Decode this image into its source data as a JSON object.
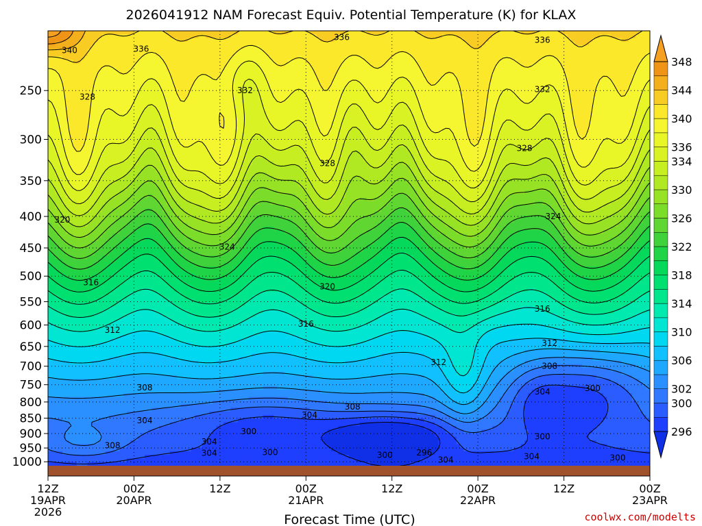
{
  "chart_data": {
    "type": "heatmap",
    "title": "2026041912 NAM Forecast Equiv. Potential Temperature (K) for KLAX",
    "xlabel": "Forecast Time (UTC)",
    "ylabel": "",
    "credit": "coolwx.com/modelts",
    "x_tick_labels": [
      {
        "hours": 0,
        "line1": "12Z",
        "line2": "19APR",
        "line3": "2026"
      },
      {
        "hours": 12,
        "line1": "00Z",
        "line2": "20APR",
        "line3": ""
      },
      {
        "hours": 24,
        "line1": "12Z",
        "line2": "",
        "line3": ""
      },
      {
        "hours": 36,
        "line1": "00Z",
        "line2": "21APR",
        "line3": ""
      },
      {
        "hours": 48,
        "line1": "12Z",
        "line2": "",
        "line3": ""
      },
      {
        "hours": 60,
        "line1": "00Z",
        "line2": "22APR",
        "line3": ""
      },
      {
        "hours": 72,
        "line1": "12Z",
        "line2": "",
        "line3": ""
      },
      {
        "hours": 84,
        "line1": "00Z",
        "line2": "23APR",
        "line3": ""
      }
    ],
    "xlim": [
      0,
      84
    ],
    "y_axis": {
      "type": "log-pressure",
      "units": "hPa",
      "ylim": [
        1015,
        200
      ]
    },
    "y_tick_labels": [
      "250",
      "300",
      "350",
      "400",
      "450",
      "500",
      "550",
      "600",
      "650",
      "700",
      "750",
      "800",
      "850",
      "900",
      "950",
      "1000"
    ],
    "y_tick_values": [
      250,
      300,
      350,
      400,
      450,
      500,
      550,
      600,
      650,
      700,
      750,
      800,
      850,
      900,
      950,
      1000
    ],
    "colorbar": {
      "levels": [
        296,
        298,
        300,
        302,
        304,
        306,
        308,
        310,
        312,
        314,
        316,
        318,
        320,
        322,
        324,
        326,
        328,
        330,
        332,
        334,
        336,
        338,
        340,
        342,
        344,
        346,
        348
      ],
      "tick_labels": [
        "296",
        "300",
        "302",
        "306",
        "310",
        "314",
        "318",
        "322",
        "326",
        "330",
        "334",
        "336",
        "340",
        "344",
        "348"
      ],
      "tick_values": [
        296,
        300,
        302,
        306,
        310,
        314,
        318,
        322,
        326,
        330,
        334,
        336,
        340,
        344,
        348
      ],
      "colors": [
        "#1f3fff",
        "#2a5cff",
        "#2f78ff",
        "#2a90ff",
        "#1fa8ff",
        "#10c0ff",
        "#00d8f2",
        "#00e6d2",
        "#00eab0",
        "#00e68c",
        "#00e070",
        "#05d85a",
        "#1fd446",
        "#40d23a",
        "#5fd632",
        "#7cdc2a",
        "#98e226",
        "#b0e822",
        "#c6ee20",
        "#d8f224",
        "#e8f628",
        "#f5f530",
        "#fbe82a",
        "#f8cc22",
        "#f4b01c",
        "#f09418"
      ],
      "under_color": "#1030e8",
      "over_color": "#f5a020"
    },
    "contour_labels": [
      {
        "text": "340",
        "hours": 3,
        "hpa": 215
      },
      {
        "text": "336",
        "hours": 13,
        "hpa": 214
      },
      {
        "text": "336",
        "hours": 41,
        "hpa": 205
      },
      {
        "text": "336",
        "hours": 69,
        "hpa": 207
      },
      {
        "text": "328",
        "hours": 5.5,
        "hpa": 256
      },
      {
        "text": "332",
        "hours": 27.5,
        "hpa": 250
      },
      {
        "text": "332",
        "hours": 69,
        "hpa": 249
      },
      {
        "text": "328",
        "hours": 66.5,
        "hpa": 310
      },
      {
        "text": "328",
        "hours": 39,
        "hpa": 328
      },
      {
        "text": "320",
        "hours": 2,
        "hpa": 405
      },
      {
        "text": "324",
        "hours": 25,
        "hpa": 448
      },
      {
        "text": "324",
        "hours": 70.5,
        "hpa": 400
      },
      {
        "text": "316",
        "hours": 6,
        "hpa": 512
      },
      {
        "text": "320",
        "hours": 39,
        "hpa": 520
      },
      {
        "text": "316",
        "hours": 69,
        "hpa": 565
      },
      {
        "text": "312",
        "hours": 9,
        "hpa": 612
      },
      {
        "text": "316",
        "hours": 36,
        "hpa": 598
      },
      {
        "text": "312",
        "hours": 70,
        "hpa": 642
      },
      {
        "text": "312",
        "hours": 54.5,
        "hpa": 690
      },
      {
        "text": "308",
        "hours": 70,
        "hpa": 700
      },
      {
        "text": "308",
        "hours": 13.5,
        "hpa": 758
      },
      {
        "text": "304",
        "hours": 69,
        "hpa": 770
      },
      {
        "text": "300",
        "hours": 76,
        "hpa": 760
      },
      {
        "text": "308",
        "hours": 42.5,
        "hpa": 815
      },
      {
        "text": "304",
        "hours": 36.5,
        "hpa": 840
      },
      {
        "text": "304",
        "hours": 13.5,
        "hpa": 857
      },
      {
        "text": "300",
        "hours": 28,
        "hpa": 893
      },
      {
        "text": "304",
        "hours": 22.5,
        "hpa": 928
      },
      {
        "text": "308",
        "hours": 9,
        "hpa": 941
      },
      {
        "text": "304",
        "hours": 22.5,
        "hpa": 968
      },
      {
        "text": "300",
        "hours": 31,
        "hpa": 965
      },
      {
        "text": "296",
        "hours": 52.5,
        "hpa": 967
      },
      {
        "text": "300",
        "hours": 47,
        "hpa": 975
      },
      {
        "text": "304",
        "hours": 55.5,
        "hpa": 993
      },
      {
        "text": "300",
        "hours": 69,
        "hpa": 910
      },
      {
        "text": "304",
        "hours": 67.5,
        "hpa": 980
      },
      {
        "text": "300",
        "hours": 79.5,
        "hpa": 985
      }
    ]
  }
}
